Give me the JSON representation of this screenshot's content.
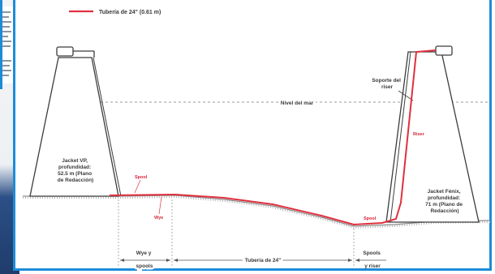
{
  "legend": {
    "label": "Tubería de 24\" (0.61 m)",
    "line_color": "#e0303e"
  },
  "labels": {
    "sea_level": "Nivel del mar",
    "riser_support_line1": "Soporte del",
    "riser_support_line2": "riser",
    "riser": "Riser",
    "jacket_vp": [
      "Jacket VP,",
      "profundidad:",
      "52.5 m (Plano",
      "de Redacción)"
    ],
    "jacket_fenix": [
      "Jacket Fénix,",
      "profundidad:",
      "71 m (Plano de",
      "Redacción)"
    ],
    "spool_left": "Spool",
    "wye": "Wye",
    "spool_right": "Spool",
    "dim_wye_spools": [
      "Wye y",
      "spools"
    ],
    "dim_pipeline": "Tubería de 24\"",
    "dim_spools_riser": [
      "Spools",
      "y riser"
    ]
  },
  "colors": {
    "pipeline": "#e0303e",
    "structure": "#3c3c3c",
    "frame": "#1c8cd8"
  }
}
